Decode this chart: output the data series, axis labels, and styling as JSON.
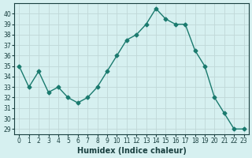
{
  "x": [
    0,
    1,
    2,
    3,
    4,
    5,
    6,
    7,
    8,
    9,
    10,
    11,
    12,
    13,
    14,
    15,
    16,
    17,
    18,
    19,
    20,
    21,
    22,
    23
  ],
  "y": [
    35,
    33,
    34.5,
    32.5,
    33,
    32,
    31.5,
    32,
    33,
    34.5,
    36,
    37.5,
    38,
    39,
    40.5,
    39.5,
    39,
    39,
    36.5,
    35,
    32,
    30.5,
    29,
    29
  ],
  "line_color": "#1a7a6e",
  "marker": "D",
  "marker_size": 2.5,
  "bg_color": "#d6f0f0",
  "grid_color": "#c0d8d8",
  "xlabel": "Humidex (Indice chaleur)",
  "ylim_min": 28.5,
  "ylim_max": 41.0,
  "yticks": [
    29,
    30,
    31,
    32,
    33,
    34,
    35,
    36,
    37,
    38,
    39,
    40
  ],
  "xlim_min": -0.5,
  "xlim_max": 23.5,
  "xticks": [
    0,
    1,
    2,
    3,
    4,
    5,
    6,
    7,
    8,
    9,
    10,
    11,
    12,
    13,
    14,
    15,
    16,
    17,
    18,
    19,
    20,
    21,
    22,
    23
  ]
}
